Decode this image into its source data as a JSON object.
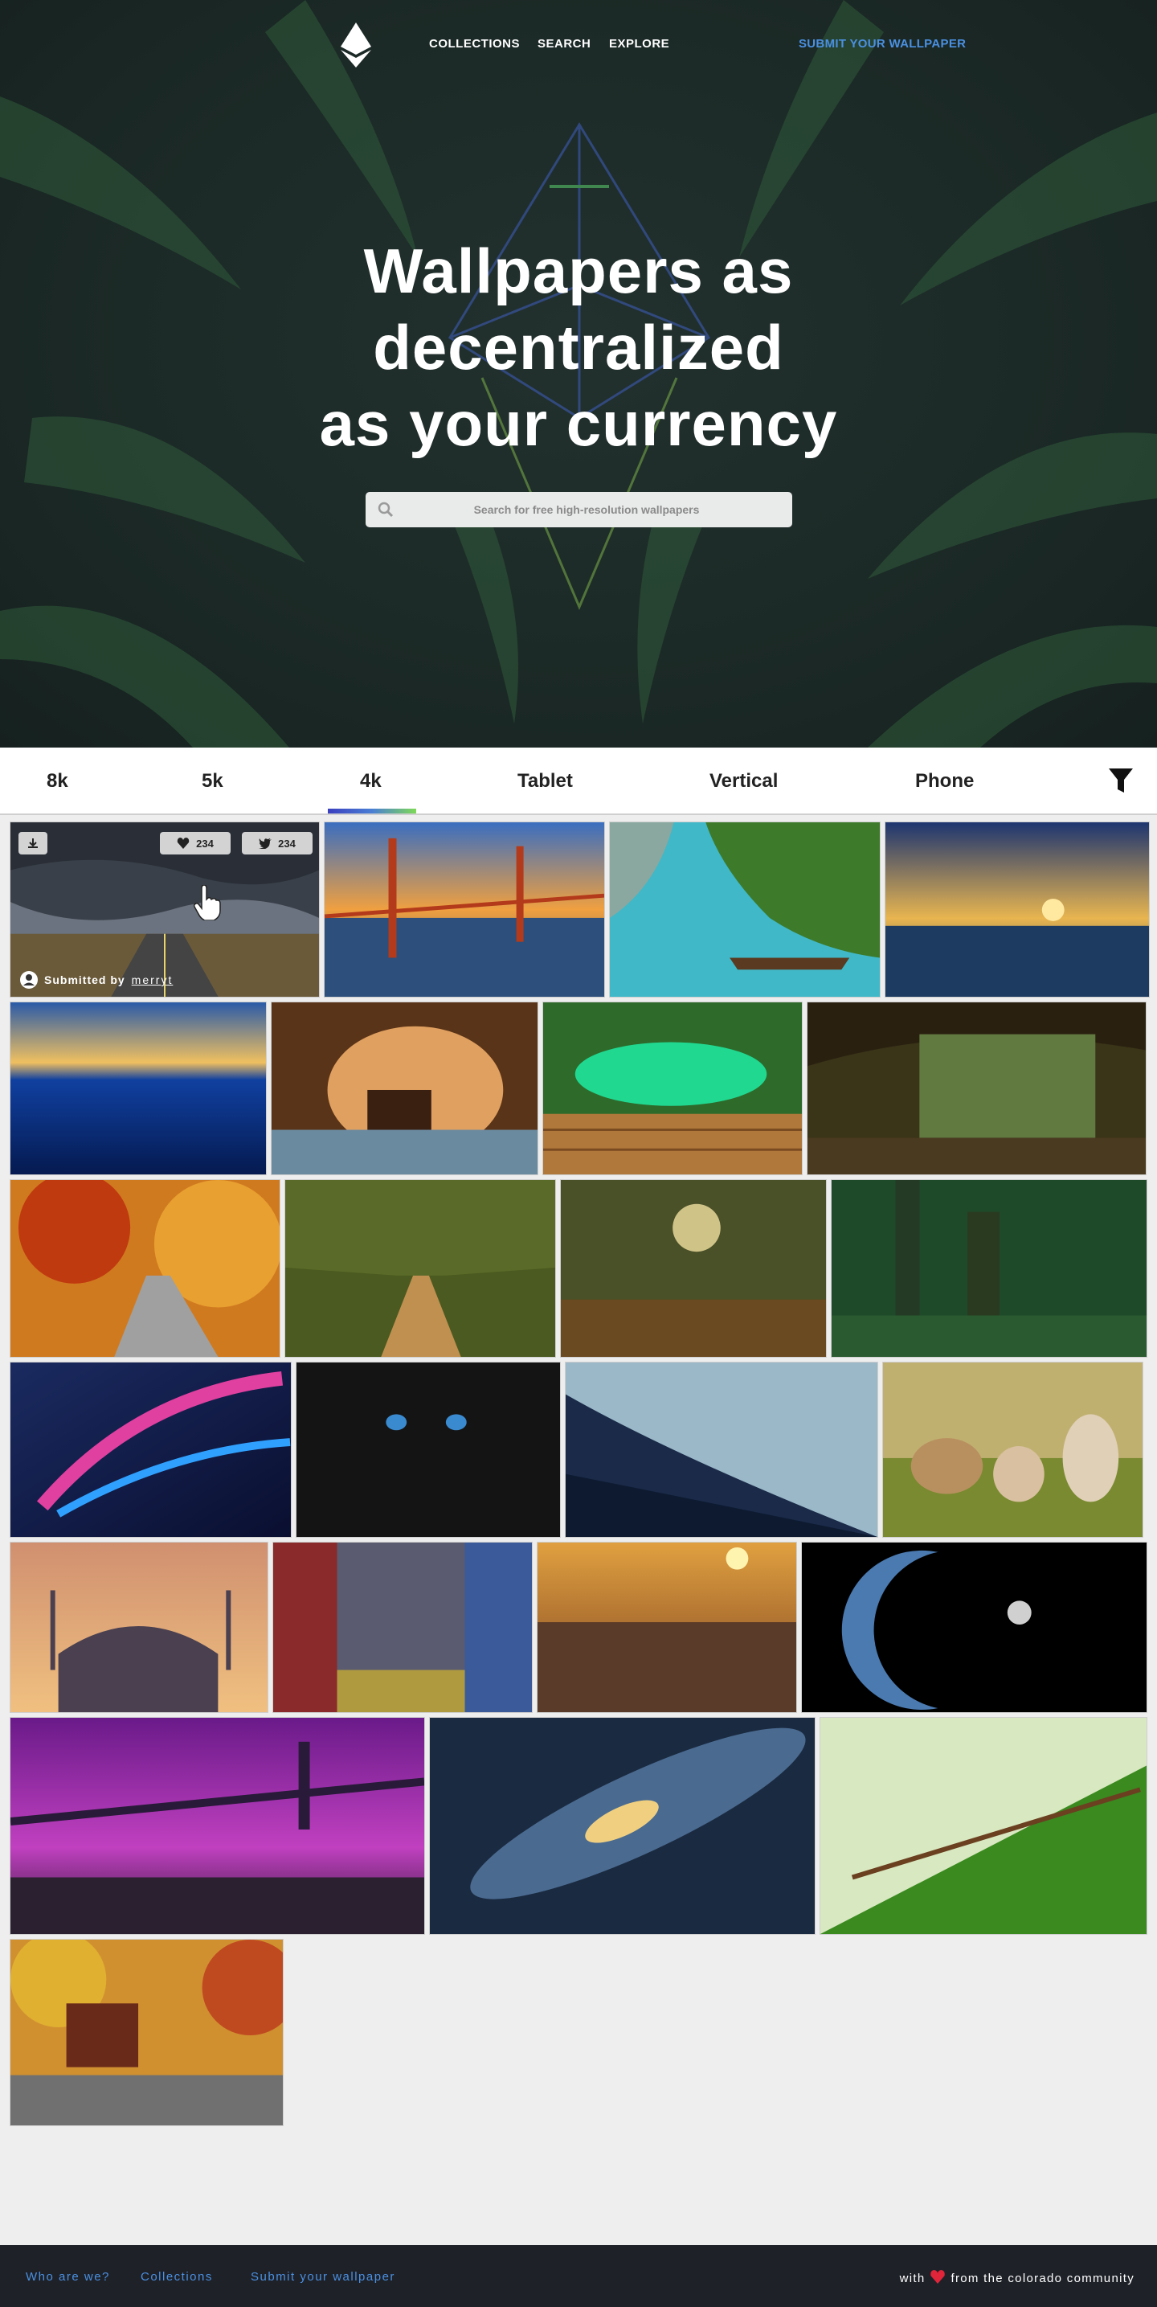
{
  "nav": {
    "links": [
      "COLLECTIONS",
      "SEARCH",
      "EXPLORE"
    ],
    "submit": "SUBMIT YOUR WALLPAPER"
  },
  "hero": {
    "title_lines": [
      "Wallpapers as",
      "decentralized",
      "as your currency"
    ],
    "search_placeholder": "Search for free high-resolution wallpapers"
  },
  "tabs": {
    "items": [
      "8k",
      "5k",
      "4k",
      "Tablet",
      "Vertical",
      "Phone"
    ],
    "active": "4k"
  },
  "featured": {
    "likes": "234",
    "tweets": "234",
    "submitted_label": "Submitted by",
    "submitter": "merryt"
  },
  "wallpapers": [
    "stormy road",
    "golden gate bridge",
    "tropical lagoon boat",
    "ocean sunset",
    "underwater sunrise",
    "sea cave",
    "jungle waterfall pool",
    "forest cave",
    "autumn road",
    "tree avenue",
    "sunlit forest",
    "green forest",
    "abstract light swirl",
    "black cat",
    "misty mountains",
    "lambs",
    "blue mosque",
    "times square",
    "prague bridges",
    "earth and moon",
    "purple bridge",
    "galaxy",
    "pine needles",
    "mill in autumn"
  ],
  "footer": {
    "links": [
      "Who are we?",
      "Collections",
      "Submit your wallpaper"
    ],
    "made_with": "with",
    "from": "from the colorado community"
  },
  "colors": {
    "accent": "#4a90e2",
    "hero_bg": "#1c2a27",
    "footer_bg": "#1e2128"
  }
}
